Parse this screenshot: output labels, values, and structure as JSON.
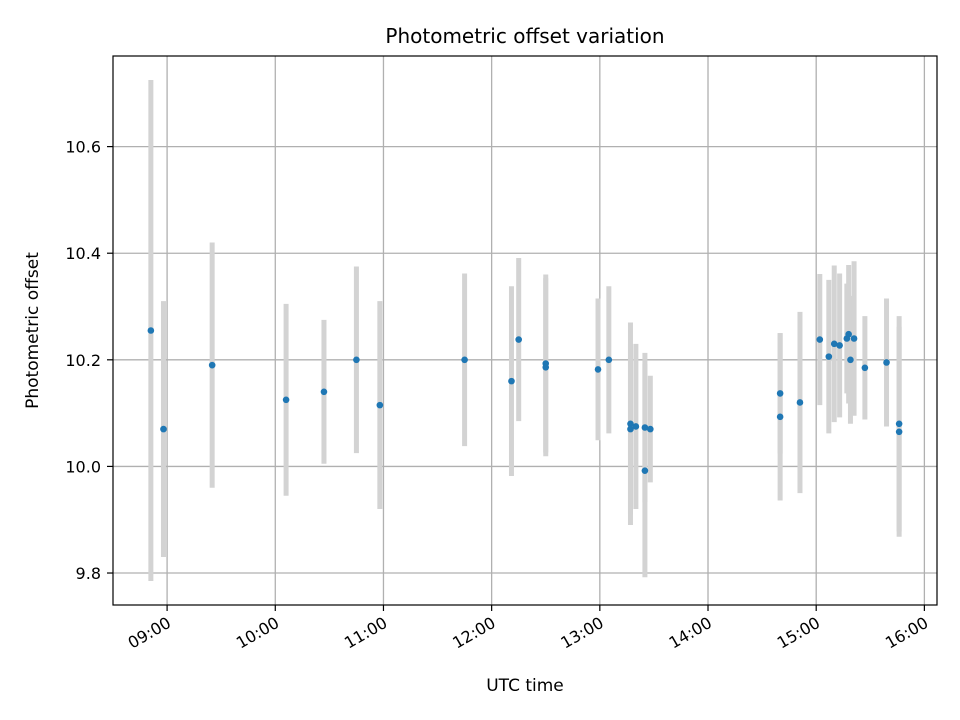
{
  "chart_data": {
    "type": "scatter",
    "title": "Photometric offset variation",
    "xlabel": "UTC time",
    "ylabel": "Photometric offset",
    "x_ticks": [
      "09:00",
      "10:00",
      "11:00",
      "12:00",
      "13:00",
      "14:00",
      "15:00",
      "16:00"
    ],
    "y_ticks": [
      "9.8",
      "10.0",
      "10.2",
      "10.4",
      "10.6"
    ],
    "xlim": [
      "08:30",
      "16:07"
    ],
    "ylim": [
      9.74,
      10.77
    ],
    "grid": true,
    "colors": {
      "point": "#1f77b4",
      "errorbar": "#d3d3d3",
      "grid": "#b0b0b0"
    },
    "points": [
      {
        "x": "08:51",
        "y": 10.255,
        "yerr": 0.47
      },
      {
        "x": "08:58",
        "y": 10.07,
        "yerr": 0.24
      },
      {
        "x": "09:25",
        "y": 10.19,
        "yerr": 0.23
      },
      {
        "x": "10:06",
        "y": 10.125,
        "yerr": 0.18
      },
      {
        "x": "10:27",
        "y": 10.14,
        "yerr": 0.135
      },
      {
        "x": "10:45",
        "y": 10.2,
        "yerr": 0.175
      },
      {
        "x": "10:58",
        "y": 10.115,
        "yerr": 0.195
      },
      {
        "x": "11:45",
        "y": 10.2,
        "yerr": 0.162
      },
      {
        "x": "12:11",
        "y": 10.16,
        "yerr": 0.178
      },
      {
        "x": "12:15",
        "y": 10.238,
        "yerr": 0.153
      },
      {
        "x": "12:30",
        "y": 10.193,
        "yerr": 0.167
      },
      {
        "x": "12:30",
        "y": 10.186,
        "yerr": 0.167
      },
      {
        "x": "12:59",
        "y": 10.182,
        "yerr": 0.133
      },
      {
        "x": "13:05",
        "y": 10.2,
        "yerr": 0.138
      },
      {
        "x": "13:17",
        "y": 10.08,
        "yerr": 0.19
      },
      {
        "x": "13:17",
        "y": 10.07,
        "yerr": 0.16
      },
      {
        "x": "13:20",
        "y": 10.075,
        "yerr": 0.155
      },
      {
        "x": "13:25",
        "y": 10.073,
        "yerr": 0.14
      },
      {
        "x": "13:25",
        "y": 9.992,
        "yerr": 0.2
      },
      {
        "x": "13:28",
        "y": 10.07,
        "yerr": 0.1
      },
      {
        "x": "14:40",
        "y": 10.137,
        "yerr": 0.113
      },
      {
        "x": "14:40",
        "y": 10.093,
        "yerr": 0.157
      },
      {
        "x": "14:51",
        "y": 10.12,
        "yerr": 0.17
      },
      {
        "x": "15:02",
        "y": 10.238,
        "yerr": 0.123
      },
      {
        "x": "15:07",
        "y": 10.206,
        "yerr": 0.144
      },
      {
        "x": "15:10",
        "y": 10.23,
        "yerr": 0.147
      },
      {
        "x": "15:13",
        "y": 10.227,
        "yerr": 0.135
      },
      {
        "x": "15:17",
        "y": 10.24,
        "yerr": 0.103
      },
      {
        "x": "15:18",
        "y": 10.248,
        "yerr": 0.13
      },
      {
        "x": "15:19",
        "y": 10.2,
        "yerr": 0.12
      },
      {
        "x": "15:21",
        "y": 10.24,
        "yerr": 0.145
      },
      {
        "x": "15:27",
        "y": 10.185,
        "yerr": 0.097
      },
      {
        "x": "15:39",
        "y": 10.195,
        "yerr": 0.12
      },
      {
        "x": "15:46",
        "y": 10.08,
        "yerr": 0.202
      },
      {
        "x": "15:46",
        "y": 10.065,
        "yerr": 0.197
      }
    ]
  }
}
